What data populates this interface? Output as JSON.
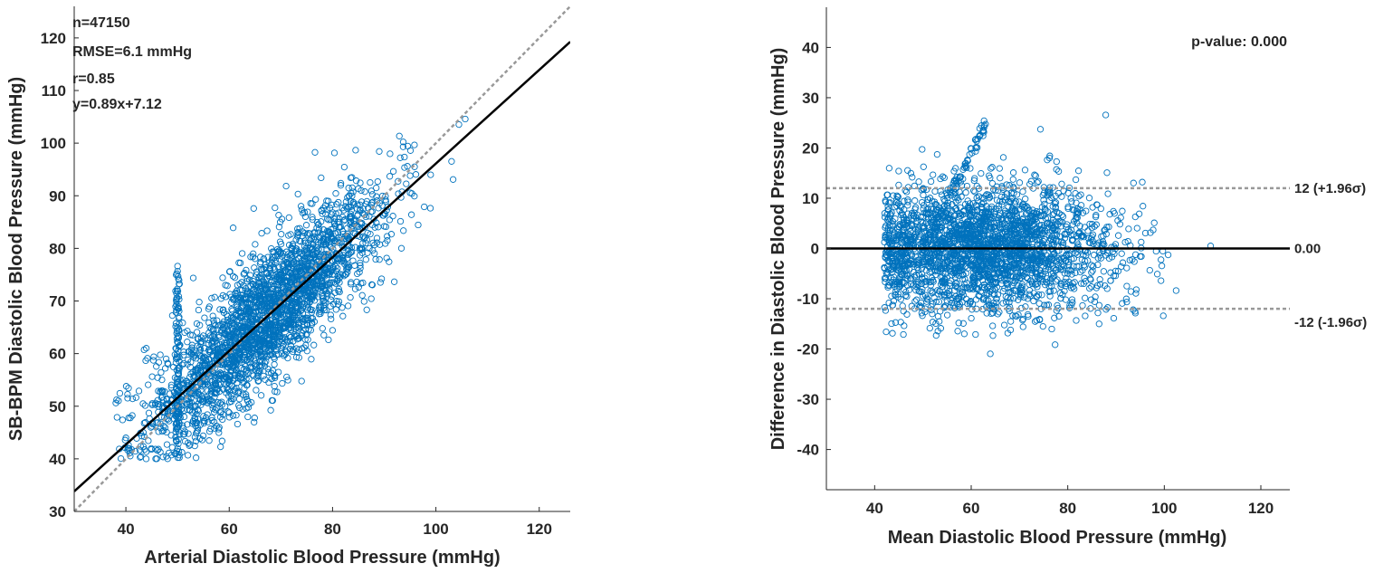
{
  "chart_data": [
    {
      "type": "scatter",
      "title": "",
      "xlabel": "Arterial Diastolic Blood Pressure (mmHg)",
      "ylabel": "SB-BPM Diastolic Blood Pressure (mmHg)",
      "xlim": [
        30,
        126
      ],
      "ylim": [
        30,
        126
      ],
      "xticks": [
        40,
        60,
        80,
        100,
        120
      ],
      "yticks": [
        30,
        40,
        50,
        60,
        70,
        80,
        90,
        100,
        110,
        120
      ],
      "marker_color": "#0072BD",
      "fit_line": {
        "slope": 0.89,
        "intercept": 7.12,
        "color": "#000000",
        "label": "y=0.89x+7.12"
      },
      "identity_line": {
        "slope": 1.0,
        "intercept": 0,
        "color": "#999999"
      },
      "annotations": [
        "n=47150",
        "RMSE=6.1 mmHg",
        "r=0.85",
        "y=0.89x+7.12"
      ],
      "stats": {
        "n": 47150,
        "rmse_mmHg": 6.1,
        "r": 0.85
      }
    },
    {
      "type": "scatter",
      "title": "",
      "xlabel": "Mean Diastolic Blood Pressure (mmHg)",
      "ylabel": "Difference in Diastolic Blood Pressure (mmHg)",
      "xlim": [
        30,
        126
      ],
      "ylim": [
        -48,
        48
      ],
      "xticks": [
        40,
        60,
        80,
        100,
        120
      ],
      "yticks": [
        -40,
        -30,
        -20,
        -10,
        0,
        10,
        20,
        30,
        40
      ],
      "marker_color": "#0072BD",
      "mean_line": {
        "value": 0.0,
        "label": "0.00",
        "color": "#000000"
      },
      "upper_limit": {
        "value": 12,
        "label": "12 (+1.96σ)",
        "color": "#999999"
      },
      "lower_limit": {
        "value": -12,
        "label": "-12 (-1.96σ)",
        "color": "#999999"
      },
      "annotation": "p-value: 0.000"
    }
  ]
}
